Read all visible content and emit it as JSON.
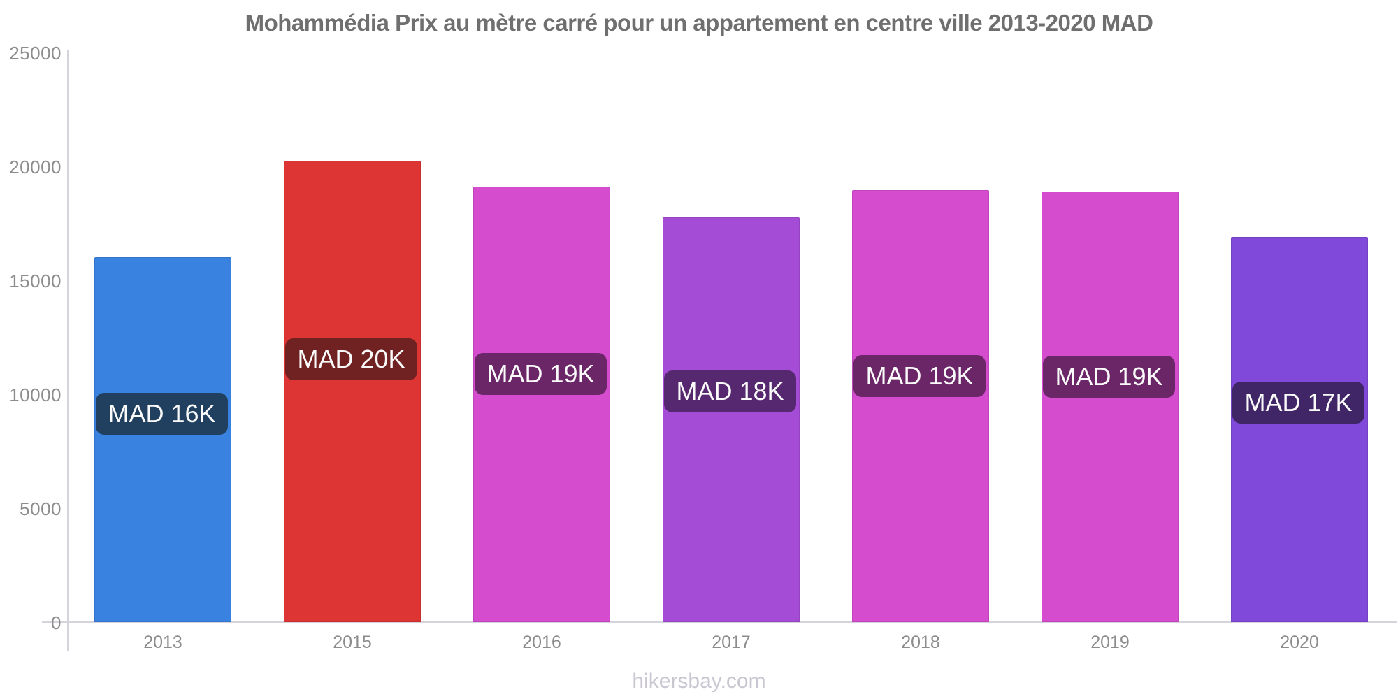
{
  "title": "Mohammédia Prix au mètre carré pour un appartement en centre ville 2013-2020 MAD",
  "footer": "hikersbay.com",
  "colors": {
    "background": "#FFFFFF",
    "title_text": "#6F6F6F",
    "axis_text": "#8C8C8C",
    "axis_line": "#D5D3DB",
    "bar_label_text": "#FAFAFA",
    "footer_text": "#C9C6D1"
  },
  "chart_data": {
    "type": "bar",
    "title": "Mohammédia Prix au mètre carré pour un appartement en centre ville 2013-2020 MAD",
    "xlabel": "",
    "ylabel": "",
    "categories": [
      "2013",
      "2015",
      "2016",
      "2017",
      "2018",
      "2019",
      "2020"
    ],
    "values": [
      16000,
      20250,
      19100,
      17750,
      18950,
      18900,
      16900
    ],
    "bar_labels": [
      "MAD 16K",
      "MAD 20K",
      "MAD 19K",
      "MAD 18K",
      "MAD 19K",
      "MAD 19K",
      "MAD 17K"
    ],
    "bar_colors": [
      "#3A82DF",
      "#DD3534",
      "#D54CCF",
      "#A54CD6",
      "#D54CCF",
      "#D54CCF",
      "#8049D9"
    ],
    "bar_label_bg_colors": [
      "#21405F",
      "#6F2221",
      "#6B2667",
      "#56286F",
      "#6B2667",
      "#6B2667",
      "#402567"
    ],
    "ylim": [
      0,
      25000
    ],
    "yticks": [
      0,
      5000,
      10000,
      15000,
      20000,
      25000
    ],
    "grid": false,
    "legend": false,
    "unit": "MAD"
  }
}
